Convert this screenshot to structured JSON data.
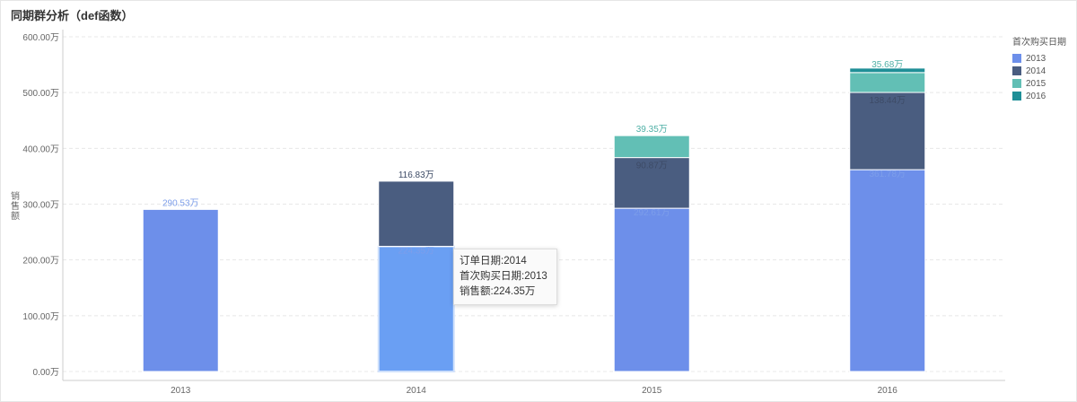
{
  "title": "同期群分析（def函数）",
  "chart_data": {
    "type": "bar",
    "stacked": true,
    "title": "同期群分析（def函数）",
    "ylabel": "销售额",
    "xlabel": "",
    "ylim": [
      0,
      600
    ],
    "y_unit": "万",
    "yticks": [
      "0.00万",
      "100.00万",
      "200.00万",
      "300.00万",
      "400.00万",
      "500.00万",
      "600.00万"
    ],
    "categories": [
      "2013",
      "2014",
      "2015",
      "2016"
    ],
    "legend_title": "首次购买日期",
    "legend_position": "top-right",
    "grid": true,
    "series": [
      {
        "name": "2013",
        "color": "#6d8fea",
        "values": [
          290.53,
          224.35,
          292.61,
          361.78
        ],
        "labels": [
          "290.53万",
          "224.35万",
          "292.61万",
          "361.78万"
        ]
      },
      {
        "name": "2014",
        "color": "#4a5d80",
        "values": [
          null,
          116.83,
          90.87,
          138.44
        ],
        "labels": [
          "",
          "116.83万",
          "90.87万",
          "138.44万"
        ]
      },
      {
        "name": "2015",
        "color": "#62bfb5",
        "values": [
          null,
          null,
          39.35,
          35.68
        ],
        "labels": [
          "",
          "",
          "39.35万",
          "35.68万"
        ]
      },
      {
        "name": "2016",
        "color": "#1f8f97",
        "values": [
          null,
          null,
          null,
          8
        ],
        "labels": [
          "",
          "",
          "",
          ""
        ]
      }
    ],
    "highlight": {
      "category_index": 1,
      "series_index": 0,
      "color": "#6a9ff3"
    }
  },
  "tooltip": {
    "line1": "订单日期:2014",
    "line2": "首次购买日期:2013",
    "line3": "销售额:224.35万"
  }
}
